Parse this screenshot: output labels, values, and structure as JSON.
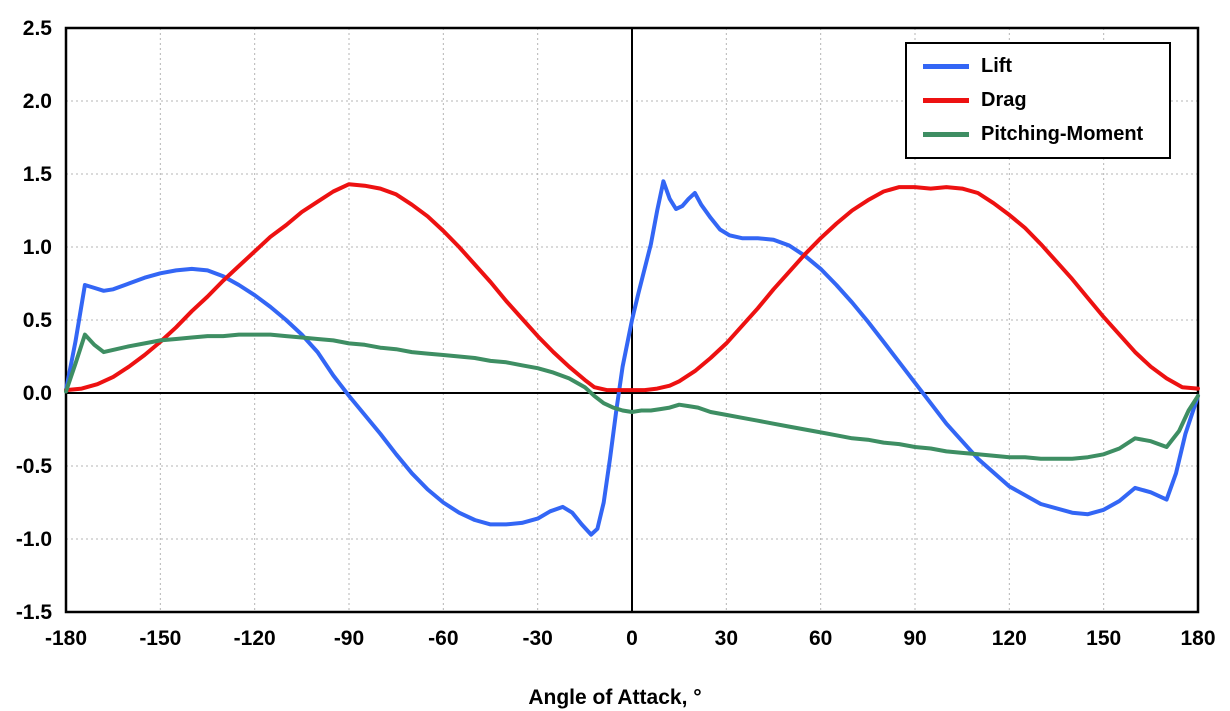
{
  "chart_data": {
    "type": "line",
    "title": "",
    "xlabel": "Angle of Attack, °",
    "ylabel": "",
    "xlim": [
      -180,
      180
    ],
    "ylim": [
      -1.5,
      2.5
    ],
    "grid": true,
    "grid_color": "#b5b5b5",
    "axis_color": "#000000",
    "legend_position": "top-right",
    "x_ticks": [
      -180,
      -150,
      -120,
      -90,
      -60,
      -30,
      0,
      30,
      60,
      90,
      120,
      150,
      180
    ],
    "x_tick_labels": [
      "-180",
      "-150",
      "-120",
      "-90",
      "-60",
      "-30",
      "0",
      "30",
      "60",
      "90",
      "120",
      "150",
      "180"
    ],
    "y_ticks": [
      2.5,
      2.0,
      1.5,
      1.0,
      0.5,
      0.0,
      -0.5,
      -1.0,
      -1.5
    ],
    "y_tick_labels": [
      "2.5",
      "2.0",
      "1.5",
      "1.0",
      "0.5",
      "0.0",
      "-0.5",
      "-1.0",
      "-1.5"
    ],
    "series": [
      {
        "name": "Lift",
        "color": "#3366f5",
        "x": [
          -180,
          -177,
          -174,
          -171,
          -168,
          -165,
          -160,
          -155,
          -150,
          -145,
          -140,
          -135,
          -130,
          -125,
          -120,
          -115,
          -110,
          -105,
          -100,
          -95,
          -90,
          -85,
          -80,
          -75,
          -70,
          -65,
          -60,
          -55,
          -50,
          -45,
          -40,
          -35,
          -30,
          -26,
          -22,
          -19,
          -16,
          -13,
          -11,
          -9,
          -7,
          -5,
          -3,
          0,
          2,
          4,
          6,
          8,
          10,
          12,
          14,
          16,
          18,
          20,
          22,
          25,
          28,
          31,
          35,
          40,
          45,
          50,
          55,
          60,
          65,
          70,
          75,
          80,
          85,
          90,
          95,
          100,
          110,
          120,
          130,
          140,
          145,
          150,
          155,
          160,
          165,
          170,
          173,
          176,
          180
        ],
        "y": [
          0.02,
          0.35,
          0.74,
          0.72,
          0.7,
          0.71,
          0.75,
          0.79,
          0.82,
          0.84,
          0.85,
          0.84,
          0.8,
          0.74,
          0.67,
          0.59,
          0.5,
          0.4,
          0.28,
          0.12,
          -0.02,
          -0.15,
          -0.28,
          -0.42,
          -0.55,
          -0.66,
          -0.75,
          -0.82,
          -0.87,
          -0.9,
          -0.9,
          -0.89,
          -0.86,
          -0.81,
          -0.78,
          -0.82,
          -0.9,
          -0.97,
          -0.93,
          -0.75,
          -0.45,
          -0.12,
          0.18,
          0.5,
          0.68,
          0.85,
          1.02,
          1.25,
          1.45,
          1.33,
          1.26,
          1.28,
          1.33,
          1.37,
          1.29,
          1.2,
          1.12,
          1.08,
          1.06,
          1.06,
          1.05,
          1.01,
          0.94,
          0.85,
          0.74,
          0.62,
          0.49,
          0.35,
          0.21,
          0.07,
          -0.07,
          -0.21,
          -0.45,
          -0.64,
          -0.76,
          -0.82,
          -0.83,
          -0.8,
          -0.74,
          -0.65,
          -0.68,
          -0.73,
          -0.55,
          -0.28,
          -0.02
        ]
      },
      {
        "name": "Drag",
        "color": "#ed1111",
        "x": [
          -180,
          -175,
          -170,
          -165,
          -160,
          -155,
          -150,
          -145,
          -140,
          -135,
          -130,
          -125,
          -120,
          -115,
          -110,
          -105,
          -100,
          -95,
          -90,
          -85,
          -80,
          -75,
          -70,
          -65,
          -60,
          -55,
          -50,
          -45,
          -40,
          -35,
          -30,
          -25,
          -20,
          -15,
          -12,
          -8,
          -4,
          0,
          4,
          8,
          12,
          15,
          20,
          25,
          30,
          35,
          40,
          45,
          50,
          55,
          60,
          65,
          70,
          75,
          80,
          85,
          90,
          95,
          100,
          105,
          110,
          115,
          120,
          125,
          130,
          135,
          140,
          145,
          150,
          155,
          160,
          165,
          170,
          175,
          180
        ],
        "y": [
          0.02,
          0.03,
          0.06,
          0.11,
          0.18,
          0.26,
          0.35,
          0.45,
          0.56,
          0.66,
          0.77,
          0.87,
          0.97,
          1.07,
          1.15,
          1.24,
          1.31,
          1.38,
          1.43,
          1.42,
          1.4,
          1.36,
          1.29,
          1.21,
          1.11,
          1.0,
          0.88,
          0.76,
          0.63,
          0.51,
          0.39,
          0.28,
          0.18,
          0.09,
          0.04,
          0.02,
          0.02,
          0.02,
          0.02,
          0.03,
          0.05,
          0.08,
          0.15,
          0.24,
          0.34,
          0.46,
          0.58,
          0.71,
          0.83,
          0.95,
          1.06,
          1.16,
          1.25,
          1.32,
          1.38,
          1.41,
          1.41,
          1.4,
          1.41,
          1.4,
          1.37,
          1.3,
          1.22,
          1.13,
          1.02,
          0.9,
          0.78,
          0.65,
          0.52,
          0.4,
          0.28,
          0.18,
          0.1,
          0.04,
          0.03
        ]
      },
      {
        "name": "Pitching-Moment",
        "color": "#3e8e63",
        "x": [
          -180,
          -177,
          -174,
          -171,
          -168,
          -164,
          -160,
          -155,
          -150,
          -145,
          -140,
          -135,
          -130,
          -125,
          -120,
          -115,
          -110,
          -105,
          -100,
          -95,
          -90,
          -85,
          -80,
          -75,
          -70,
          -65,
          -60,
          -55,
          -50,
          -45,
          -40,
          -35,
          -30,
          -25,
          -20,
          -15,
          -12,
          -9,
          -6,
          -3,
          0,
          3,
          6,
          9,
          12,
          15,
          18,
          21,
          25,
          30,
          35,
          40,
          45,
          50,
          55,
          60,
          65,
          70,
          75,
          80,
          85,
          90,
          95,
          100,
          105,
          110,
          115,
          120,
          125,
          130,
          135,
          140,
          145,
          150,
          155,
          160,
          165,
          170,
          174,
          177,
          180
        ],
        "y": [
          0.01,
          0.2,
          0.4,
          0.33,
          0.28,
          0.3,
          0.32,
          0.34,
          0.36,
          0.37,
          0.38,
          0.39,
          0.39,
          0.4,
          0.4,
          0.4,
          0.39,
          0.38,
          0.37,
          0.36,
          0.34,
          0.33,
          0.31,
          0.3,
          0.28,
          0.27,
          0.26,
          0.25,
          0.24,
          0.22,
          0.21,
          0.19,
          0.17,
          0.14,
          0.1,
          0.04,
          -0.02,
          -0.07,
          -0.1,
          -0.12,
          -0.13,
          -0.12,
          -0.12,
          -0.11,
          -0.1,
          -0.08,
          -0.09,
          -0.1,
          -0.13,
          -0.15,
          -0.17,
          -0.19,
          -0.21,
          -0.23,
          -0.25,
          -0.27,
          -0.29,
          -0.31,
          -0.32,
          -0.34,
          -0.35,
          -0.37,
          -0.38,
          -0.4,
          -0.41,
          -0.42,
          -0.43,
          -0.44,
          -0.44,
          -0.45,
          -0.45,
          -0.45,
          -0.44,
          -0.42,
          -0.38,
          -0.31,
          -0.33,
          -0.37,
          -0.26,
          -0.12,
          -0.02
        ]
      }
    ]
  }
}
